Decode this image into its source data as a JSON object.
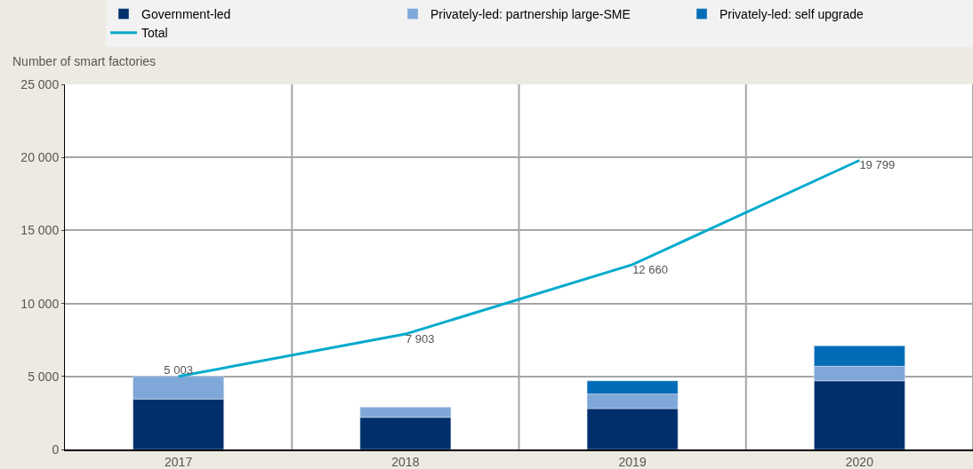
{
  "chart_data": {
    "type": "bar",
    "stacked": true,
    "ylabel": "Number of smart factories",
    "categories": [
      "2017",
      "2018",
      "2019",
      "2020"
    ],
    "series": [
      {
        "name": "Government-led",
        "color": "#002f6c",
        "values": [
          3450,
          2200,
          2800,
          4700
        ]
      },
      {
        "name": "Privately-led: partnership large-SME",
        "color": "#7fa8d9",
        "values": [
          1550,
          700,
          1000,
          1000
        ]
      },
      {
        "name": "Privately-led: self upgrade",
        "color": "#006bb6",
        "values": [
          null,
          null,
          900,
          1400
        ]
      },
      {
        "name": "Total",
        "type": "line",
        "color": "#00aacc",
        "values": [
          5003,
          7903,
          12660,
          19799
        ],
        "value_labels": [
          "5 003",
          "7 903",
          "12 660",
          "19 799"
        ]
      }
    ],
    "ylim": [
      0,
      25000
    ],
    "yticks": [
      {
        "value": 0,
        "label": "0"
      },
      {
        "value": 5000,
        "label": "5 000"
      },
      {
        "value": 10000,
        "label": "10 000"
      },
      {
        "value": 15000,
        "label": "15 000"
      },
      {
        "value": 20000,
        "label": "20 000"
      },
      {
        "value": 25000,
        "label": "25 000"
      }
    ],
    "grid": true,
    "legend": "top"
  }
}
